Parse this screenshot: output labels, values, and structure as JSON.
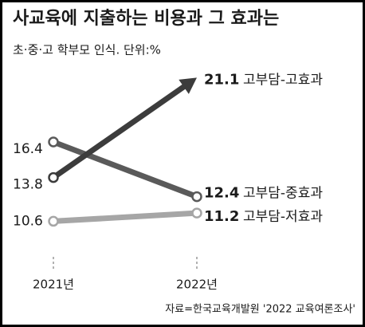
{
  "chart_data": {
    "type": "slope",
    "title": "사교육에 지출하는 비용과 그 효과는",
    "subtitle": "초·중·고 학부모 인식. 단위:%",
    "source": "자료=한국교육개발원 '2022 교육여론조사'",
    "categories": [
      "2021년",
      "2022년"
    ],
    "ylim": [
      8,
      22
    ],
    "series": [
      {
        "name": "고부담-고효과",
        "color": "#3c3c3c",
        "values": [
          13.8,
          21.1
        ]
      },
      {
        "name": "고부담-중효과",
        "color": "#5a5a5a",
        "values": [
          16.4,
          12.4
        ]
      },
      {
        "name": "고부담-저효과",
        "color": "#a6a6a6",
        "values": [
          10.6,
          11.2
        ]
      }
    ]
  }
}
